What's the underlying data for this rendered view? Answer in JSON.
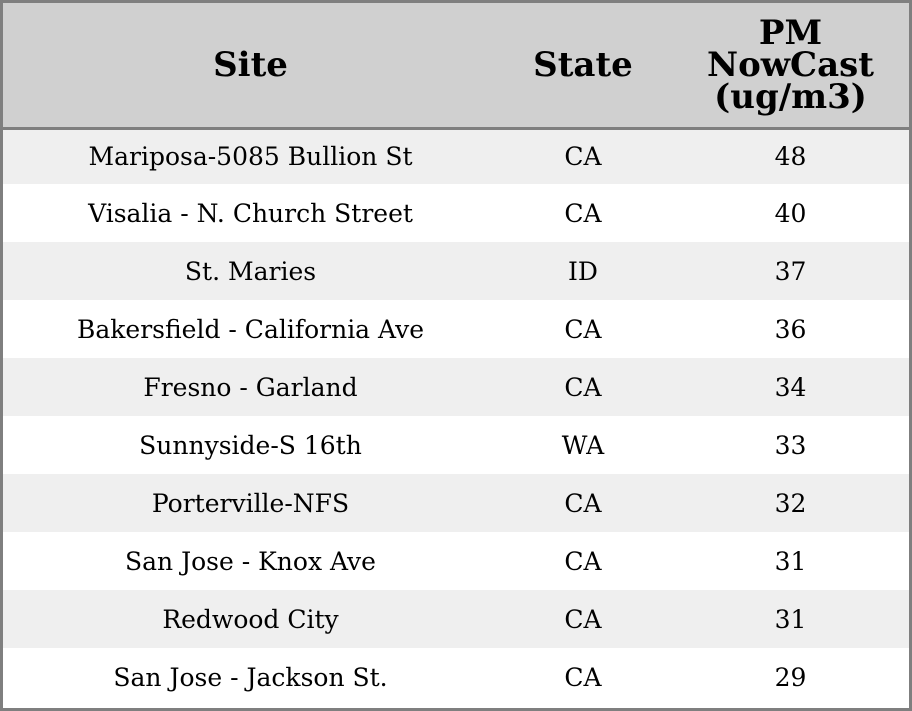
{
  "chart_data": {
    "type": "table",
    "columns": [
      "Site",
      "State",
      "PM NowCast (ug/m3)"
    ],
    "column_header_lines": {
      "site": [
        "Site"
      ],
      "state": [
        "State"
      ],
      "value": [
        "PM",
        "NowCast",
        "(ug/m3)"
      ]
    },
    "rows": [
      {
        "site": "Mariposa-5085 Bullion St",
        "state": "CA",
        "value": 48
      },
      {
        "site": "Visalia - N. Church Street",
        "state": "CA",
        "value": 40
      },
      {
        "site": "St. Maries",
        "state": "ID",
        "value": 37
      },
      {
        "site": "Bakersfield - California Ave",
        "state": "CA",
        "value": 36
      },
      {
        "site": "Fresno - Garland",
        "state": "CA",
        "value": 34
      },
      {
        "site": "Sunnyside-S 16th",
        "state": "WA",
        "value": 33
      },
      {
        "site": "Porterville-NFS",
        "state": "CA",
        "value": 32
      },
      {
        "site": "San Jose - Knox Ave",
        "state": "CA",
        "value": 31
      },
      {
        "site": "Redwood City",
        "state": "CA",
        "value": 31
      },
      {
        "site": "San Jose - Jackson St.",
        "state": "CA",
        "value": 29
      }
    ]
  },
  "colors": {
    "header_background": "#d0d0d0",
    "row_stripe": "#efefef",
    "row_plain": "#ffffff",
    "border": "#7f7f7f"
  }
}
